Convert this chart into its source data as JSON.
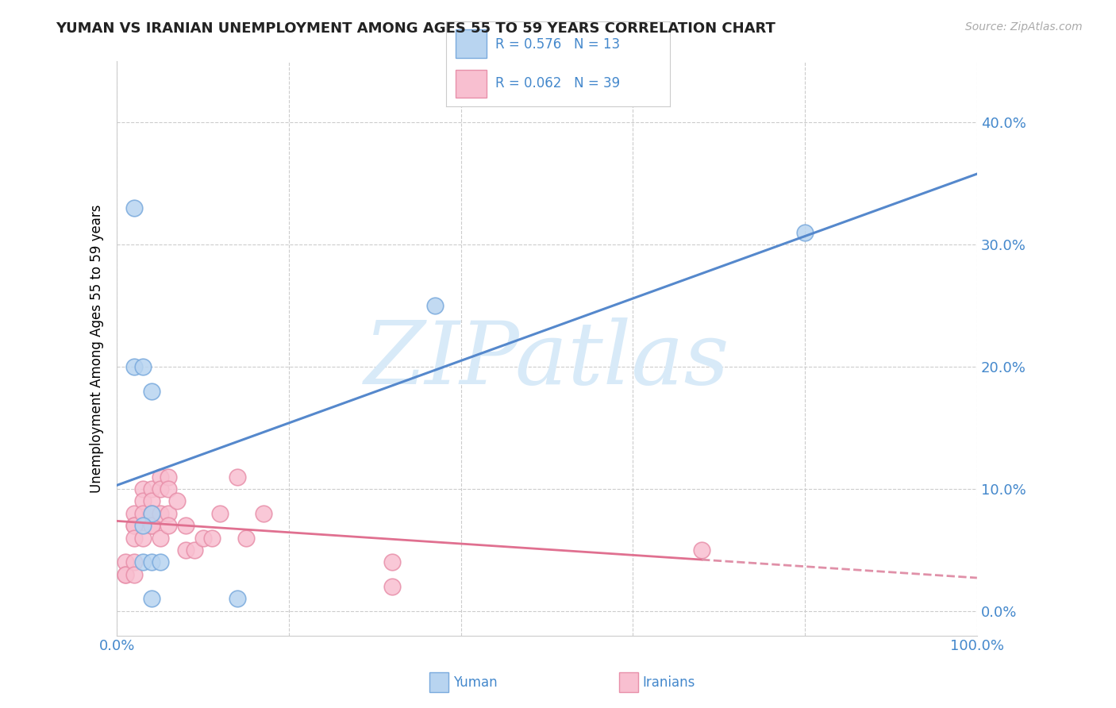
{
  "title": "YUMAN VS IRANIAN UNEMPLOYMENT AMONG AGES 55 TO 59 YEARS CORRELATION CHART",
  "source": "Source: ZipAtlas.com",
  "ylabel": "Unemployment Among Ages 55 to 59 years",
  "xlim": [
    0.0,
    1.0
  ],
  "ylim": [
    -0.02,
    0.45
  ],
  "xticks": [
    0.0,
    0.2,
    0.4,
    0.6,
    0.8,
    1.0
  ],
  "xticklabels": [
    "0.0%",
    "",
    "",
    "",
    "",
    "100.0%"
  ],
  "yticks": [
    0.0,
    0.1,
    0.2,
    0.3,
    0.4
  ],
  "yticklabels": [
    "0.0%",
    "10.0%",
    "20.0%",
    "30.0%",
    "40.0%"
  ],
  "yuman_R": 0.576,
  "yuman_N": 13,
  "iranians_R": 0.062,
  "iranians_N": 39,
  "yuman_color": "#b8d4f0",
  "yuman_edge_color": "#7aaadd",
  "iranians_color": "#f8bfd0",
  "iranians_edge_color": "#e890aa",
  "blue_line_color": "#5588cc",
  "pink_line_color": "#e07090",
  "pink_dashed_color": "#e090a8",
  "legend_text_color": "#4488cc",
  "watermark_color": "#d8eaf8",
  "yuman_x": [
    0.02,
    0.02,
    0.03,
    0.04,
    0.04,
    0.37,
    0.8,
    0.03,
    0.03,
    0.04,
    0.05,
    0.04,
    0.14
  ],
  "yuman_y": [
    0.33,
    0.2,
    0.2,
    0.18,
    0.08,
    0.25,
    0.31,
    0.07,
    0.04,
    0.04,
    0.04,
    0.01,
    0.01
  ],
  "iranians_x": [
    0.01,
    0.01,
    0.01,
    0.02,
    0.02,
    0.02,
    0.02,
    0.02,
    0.02,
    0.03,
    0.03,
    0.03,
    0.03,
    0.04,
    0.04,
    0.04,
    0.04,
    0.04,
    0.05,
    0.05,
    0.05,
    0.05,
    0.06,
    0.06,
    0.06,
    0.06,
    0.07,
    0.08,
    0.08,
    0.09,
    0.1,
    0.11,
    0.12,
    0.14,
    0.15,
    0.17,
    0.32,
    0.68,
    0.32
  ],
  "iranians_y": [
    0.04,
    0.03,
    0.03,
    0.08,
    0.07,
    0.07,
    0.06,
    0.04,
    0.03,
    0.1,
    0.09,
    0.08,
    0.06,
    0.1,
    0.09,
    0.08,
    0.07,
    0.07,
    0.11,
    0.1,
    0.08,
    0.06,
    0.11,
    0.1,
    0.08,
    0.07,
    0.09,
    0.07,
    0.05,
    0.05,
    0.06,
    0.06,
    0.08,
    0.11,
    0.06,
    0.08,
    0.04,
    0.05,
    0.02
  ],
  "grid_color": "#cccccc",
  "title_color": "#222222",
  "axis_color": "#4488cc",
  "background_color": "#ffffff"
}
